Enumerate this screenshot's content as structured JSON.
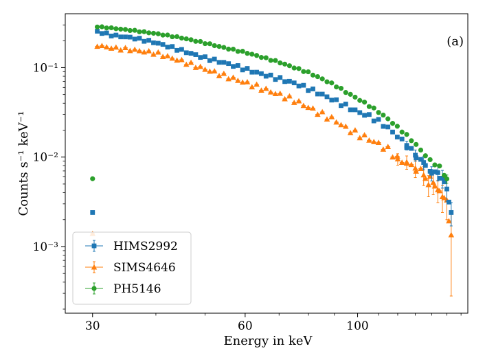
{
  "chart_data": {
    "type": "scatter",
    "title": "",
    "panel_label": "(a)",
    "xlabel": "Energy in keV",
    "ylabel": "Counts s⁻¹ keV⁻¹",
    "x_scale": "log",
    "y_scale": "log",
    "xlim": [
      26.5,
      165
    ],
    "ylim": [
      0.00018,
      0.4
    ],
    "x_ticks": [
      {
        "value": 30,
        "label": "30"
      },
      {
        "value": 60,
        "label": "60"
      },
      {
        "value": 100,
        "label": "100"
      }
    ],
    "y_ticks": [
      {
        "value": 0.001,
        "label": "10⁻³"
      },
      {
        "value": 0.01,
        "label": "10⁻²"
      },
      {
        "value": 0.1,
        "label": "10⁻¹"
      }
    ],
    "legend_position": "bottom-left",
    "series": [
      {
        "name": "HIMS2992",
        "color": "#1f77b4",
        "marker": "square",
        "anchors": [
          [
            30,
            0.26
          ],
          [
            33,
            0.228
          ],
          [
            36,
            0.215
          ],
          [
            40,
            0.19
          ],
          [
            45,
            0.155
          ],
          [
            50,
            0.128
          ],
          [
            55,
            0.112
          ],
          [
            60,
            0.096
          ],
          [
            65,
            0.084
          ],
          [
            70,
            0.075
          ],
          [
            75,
            0.067
          ],
          [
            80,
            0.058
          ],
          [
            85,
            0.05
          ],
          [
            90,
            0.043
          ],
          [
            95,
            0.037
          ],
          [
            100,
            0.032
          ],
          [
            105,
            0.029
          ],
          [
            110,
            0.025
          ],
          [
            115,
            0.021
          ],
          [
            120,
            0.017
          ],
          [
            125,
            0.0135
          ],
          [
            130,
            0.0105
          ],
          [
            135,
            0.0085
          ],
          [
            140,
            0.0068
          ],
          [
            145,
            0.0062
          ],
          [
            150,
            0.0044
          ],
          [
            153,
            0.0024
          ]
        ],
        "error_points": [
          [
            125,
            0.0135,
            0.0015
          ],
          [
            130,
            0.0105,
            0.0015
          ],
          [
            135,
            0.0087,
            0.0015
          ],
          [
            140,
            0.0066,
            0.0012
          ],
          [
            144,
            0.0067,
            0.0013
          ],
          [
            147,
            0.0058,
            0.0013
          ],
          [
            150,
            0.0044,
            0.0012
          ],
          [
            153,
            0.0024,
            0.0007
          ]
        ],
        "jitter": 0.025
      },
      {
        "name": "SIMS4646",
        "color": "#ff7f0e",
        "marker": "triangle",
        "anchors": [
          [
            30,
            0.18
          ],
          [
            33,
            0.165
          ],
          [
            36,
            0.158
          ],
          [
            40,
            0.145
          ],
          [
            45,
            0.118
          ],
          [
            50,
            0.096
          ],
          [
            55,
            0.08
          ],
          [
            60,
            0.068
          ],
          [
            65,
            0.058
          ],
          [
            70,
            0.05
          ],
          [
            75,
            0.043
          ],
          [
            80,
            0.036
          ],
          [
            85,
            0.03
          ],
          [
            90,
            0.026
          ],
          [
            95,
            0.021
          ],
          [
            100,
            0.018
          ],
          [
            105,
            0.016
          ],
          [
            110,
            0.014
          ],
          [
            115,
            0.012
          ],
          [
            120,
            0.0095
          ],
          [
            125,
            0.0085
          ],
          [
            130,
            0.0075
          ],
          [
            135,
            0.0065
          ],
          [
            140,
            0.0055
          ],
          [
            145,
            0.0042
          ],
          [
            150,
            0.003
          ],
          [
            153,
            0.00135
          ]
        ],
        "error_points": [
          [
            120,
            0.0095,
            0.0014
          ],
          [
            125,
            0.0088,
            0.0015
          ],
          [
            130,
            0.0075,
            0.0016
          ],
          [
            135,
            0.0063,
            0.0015
          ],
          [
            138,
            0.0049,
            0.0013
          ],
          [
            141,
            0.0052,
            0.0014
          ],
          [
            144,
            0.0043,
            0.0012
          ],
          [
            147,
            0.0036,
            0.0012
          ],
          [
            150,
            0.0033,
            0.0013
          ],
          [
            153,
            0.00135,
            0.00107
          ]
        ],
        "jitter": 0.035
      },
      {
        "name": "PH5146",
        "color": "#2ca02c",
        "marker": "circle",
        "anchors": [
          [
            30,
            0.29
          ],
          [
            33,
            0.275
          ],
          [
            36,
            0.26
          ],
          [
            40,
            0.24
          ],
          [
            45,
            0.215
          ],
          [
            50,
            0.188
          ],
          [
            55,
            0.165
          ],
          [
            60,
            0.148
          ],
          [
            65,
            0.13
          ],
          [
            70,
            0.115
          ],
          [
            75,
            0.1
          ],
          [
            80,
            0.088
          ],
          [
            85,
            0.075
          ],
          [
            90,
            0.064
          ],
          [
            95,
            0.053
          ],
          [
            100,
            0.045
          ],
          [
            105,
            0.038
          ],
          [
            110,
            0.032
          ],
          [
            115,
            0.0265
          ],
          [
            120,
            0.0215
          ],
          [
            125,
            0.0175
          ],
          [
            130,
            0.014
          ],
          [
            135,
            0.011
          ],
          [
            140,
            0.0088
          ],
          [
            145,
            0.0078
          ],
          [
            150,
            0.0057
          ]
        ],
        "error_points": [
          [
            150,
            0.0057,
            0.0006
          ]
        ],
        "jitter": 0.01
      }
    ]
  }
}
